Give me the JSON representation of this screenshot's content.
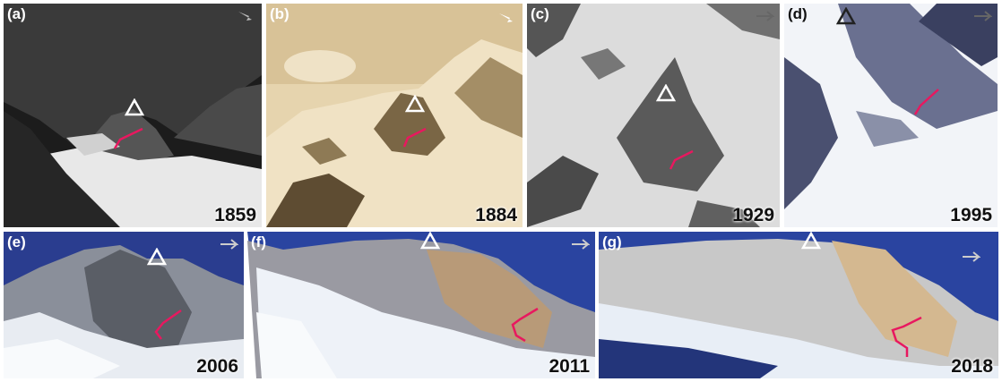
{
  "panels": [
    {
      "label": "(a)",
      "year": "1859",
      "north_icon": "north-arrow-icon",
      "summit_icon": "summit-triangle-icon",
      "route_icon": "route-arrow-icon"
    },
    {
      "label": "(b)",
      "year": "1884",
      "north_icon": "north-arrow-icon",
      "summit_icon": "summit-triangle-icon",
      "route_icon": "route-arrow-icon"
    },
    {
      "label": "(c)",
      "year": "1929",
      "north_icon": "north-arrow-icon",
      "summit_icon": "summit-triangle-icon",
      "route_icon": "route-arrow-icon"
    },
    {
      "label": "(d)",
      "year": "1995",
      "north_icon": "north-arrow-icon",
      "summit_icon": "summit-triangle-icon",
      "route_icon": "route-arrow-icon"
    },
    {
      "label": "(e)",
      "year": "2006",
      "north_icon": "north-arrow-icon",
      "summit_icon": "summit-triangle-icon",
      "route_icon": "route-arrow-icon"
    },
    {
      "label": "(f)",
      "year": "2011",
      "north_icon": "north-arrow-icon",
      "summit_icon": "summit-triangle-icon",
      "route_icon": "route-arrow-icon"
    },
    {
      "label": "(g)",
      "year": "2018",
      "north_icon": "north-arrow-icon",
      "summit_icon": "summit-triangle-icon",
      "route_icon": "route-arrow-icon"
    }
  ],
  "colors": {
    "route": "#e8185f",
    "summit_marker": "#ffffff",
    "year_text": "#111111"
  }
}
